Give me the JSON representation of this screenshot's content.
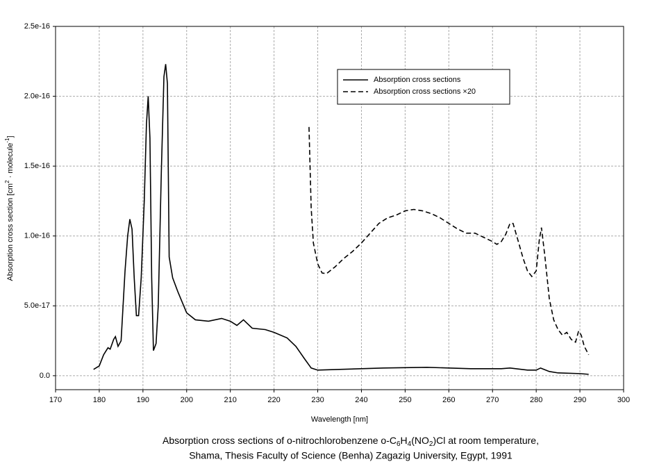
{
  "chart_data": {
    "type": "line",
    "xlabel": "Wavelength [nm]",
    "ylabel_parts": [
      "Absorption cross section [cm",
      "2",
      " · molecule",
      "-1",
      "]"
    ],
    "caption_parts": [
      "Absorption cross sections of o-nitrochlorobenzene o-C",
      "6",
      "H",
      "4",
      "(NO",
      "2",
      ")Cl at room temperature,"
    ],
    "caption_line2": "Shama, Thesis Faculty of Science (Benha) Zagazig University, Egypt, 1991",
    "xlim": [
      170,
      300
    ],
    "xticks": [
      170,
      180,
      190,
      200,
      210,
      220,
      230,
      240,
      250,
      260,
      270,
      280,
      290,
      300
    ],
    "ylim": [
      -1e-17,
      2.5e-16
    ],
    "yticks": [
      {
        "value": 0,
        "label": "0.0"
      },
      {
        "value": 5e-17,
        "label": "5.0e-17"
      },
      {
        "value": 1e-16,
        "label": "1.0e-16"
      },
      {
        "value": 1.5e-16,
        "label": "1.5e-16"
      },
      {
        "value": 2e-16,
        "label": "2.0e-16"
      },
      {
        "value": 2.5e-16,
        "label": "2.5e-16"
      }
    ],
    "grid": true,
    "legend": "top-right",
    "series": [
      {
        "name": "Absorption cross sections",
        "color": "#000000",
        "dash": "solid",
        "x": [
          178.7,
          180,
          181,
          182,
          182.5,
          183.3,
          183.7,
          184.3,
          185,
          185.9,
          186.5,
          187,
          187.5,
          188,
          188.5,
          189,
          189.6,
          190.3,
          190.8,
          191.2,
          191.6,
          192,
          192.4,
          193,
          193.5,
          194.2,
          194.8,
          195.2,
          195.6,
          196,
          196.8,
          198,
          200,
          202,
          205,
          208,
          210,
          211.5,
          213,
          215,
          218,
          220,
          223,
          225,
          227,
          228.5,
          230,
          235,
          245,
          255,
          265,
          272,
          274,
          278,
          280,
          281,
          283,
          285,
          290,
          292
        ],
        "values": [
          4.5e-18,
          7e-18,
          1.5e-17,
          2e-17,
          1.9e-17,
          2.6e-17,
          2.8e-17,
          2.1e-17,
          2.5e-17,
          7.5e-17,
          1e-16,
          1.12e-16,
          1.05e-16,
          7e-17,
          4.3e-17,
          4.3e-17,
          7e-17,
          1.25e-16,
          1.8e-16,
          2e-16,
          1.7e-16,
          7e-17,
          1.8e-17,
          2.3e-17,
          5e-17,
          1.45e-16,
          2.14e-16,
          2.23e-16,
          2.09e-16,
          8.5e-17,
          7e-17,
          6e-17,
          4.5e-17,
          4e-17,
          3.9e-17,
          4.1e-17,
          3.9e-17,
          3.6e-17,
          4e-17,
          3.4e-17,
          3.3e-17,
          3.1e-17,
          2.7e-17,
          2.1e-17,
          1.2e-17,
          5.5e-18,
          4e-18,
          4.5e-18,
          5.5e-18,
          6e-18,
          5e-18,
          5e-18,
          5.5e-18,
          4e-18,
          4e-18,
          5.5e-18,
          3e-18,
          2e-18,
          1.5e-18,
          1e-18
        ]
      },
      {
        "name": "Absorption cross sections ×20",
        "color": "#000000",
        "dash": "dashed",
        "x": [
          228,
          228.5,
          229,
          230,
          231,
          232,
          234,
          236,
          238,
          240,
          242,
          244,
          246,
          248,
          250,
          252,
          254,
          256,
          258,
          260,
          262,
          264,
          266,
          268,
          270,
          271,
          272,
          273,
          274,
          274.7,
          276,
          277,
          278,
          279,
          280,
          280.7,
          281.2,
          282,
          283,
          284,
          285,
          286,
          287,
          288,
          289,
          289.7,
          290.3,
          291,
          292
        ],
        "values": [
          1.78e-16,
          1.2e-16,
          9.5e-17,
          8e-17,
          7.35e-17,
          7.3e-17,
          7.8e-17,
          8.4e-17,
          8.9e-17,
          9.5e-17,
          1.02e-16,
          1.09e-16,
          1.13e-16,
          1.15e-16,
          1.18e-16,
          1.19e-16,
          1.18e-16,
          1.16e-16,
          1.13e-16,
          1.09e-16,
          1.05e-16,
          1.02e-16,
          1.02e-16,
          9.9e-17,
          9.6e-17,
          9.4e-17,
          9.6e-17,
          1.01e-16,
          1.09e-16,
          1.09e-16,
          9.5e-17,
          8.4e-17,
          7.5e-17,
          7.1e-17,
          7.5e-17,
          9.7e-17,
          1.06e-16,
          8.5e-17,
          5.5e-17,
          4e-17,
          3.3e-17,
          2.9e-17,
          3.1e-17,
          2.6e-17,
          2.4e-17,
          3.2e-17,
          2.9e-17,
          2.1e-17,
          1.5e-17
        ]
      }
    ]
  }
}
